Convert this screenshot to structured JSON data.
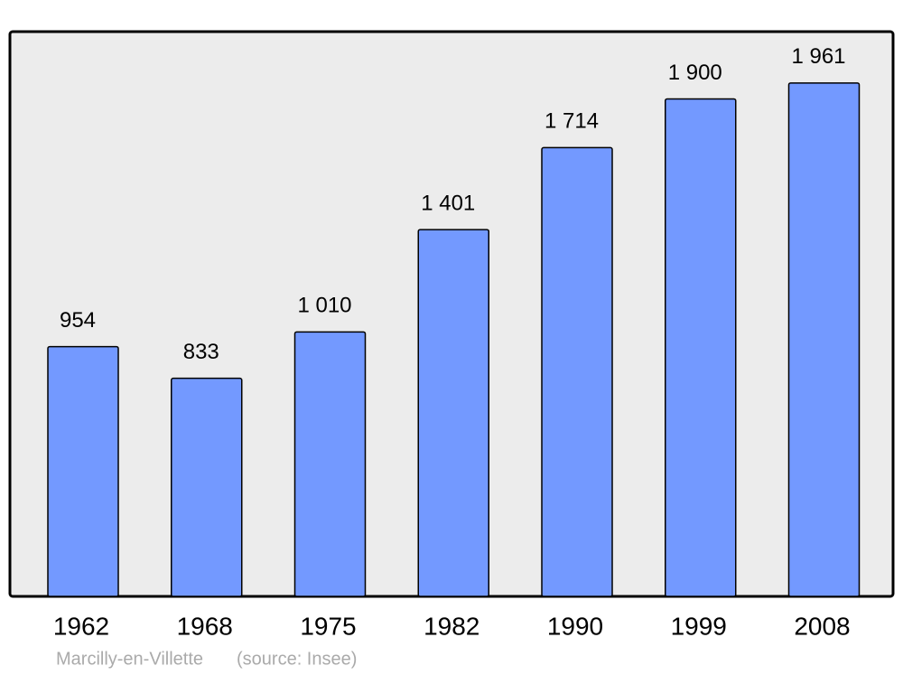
{
  "chart_data": {
    "type": "bar",
    "categories": [
      "1962",
      "1968",
      "1975",
      "1982",
      "1990",
      "1999",
      "2008"
    ],
    "values": [
      954,
      833,
      1010,
      1401,
      1714,
      1900,
      1961
    ],
    "value_labels": [
      "954",
      "833",
      "1 010",
      "1 401",
      "1 714",
      "1 900",
      "1 961"
    ],
    "color": "#7399ff",
    "caption": "Marcilly-en-Villette",
    "source": "(source: Insee)"
  }
}
